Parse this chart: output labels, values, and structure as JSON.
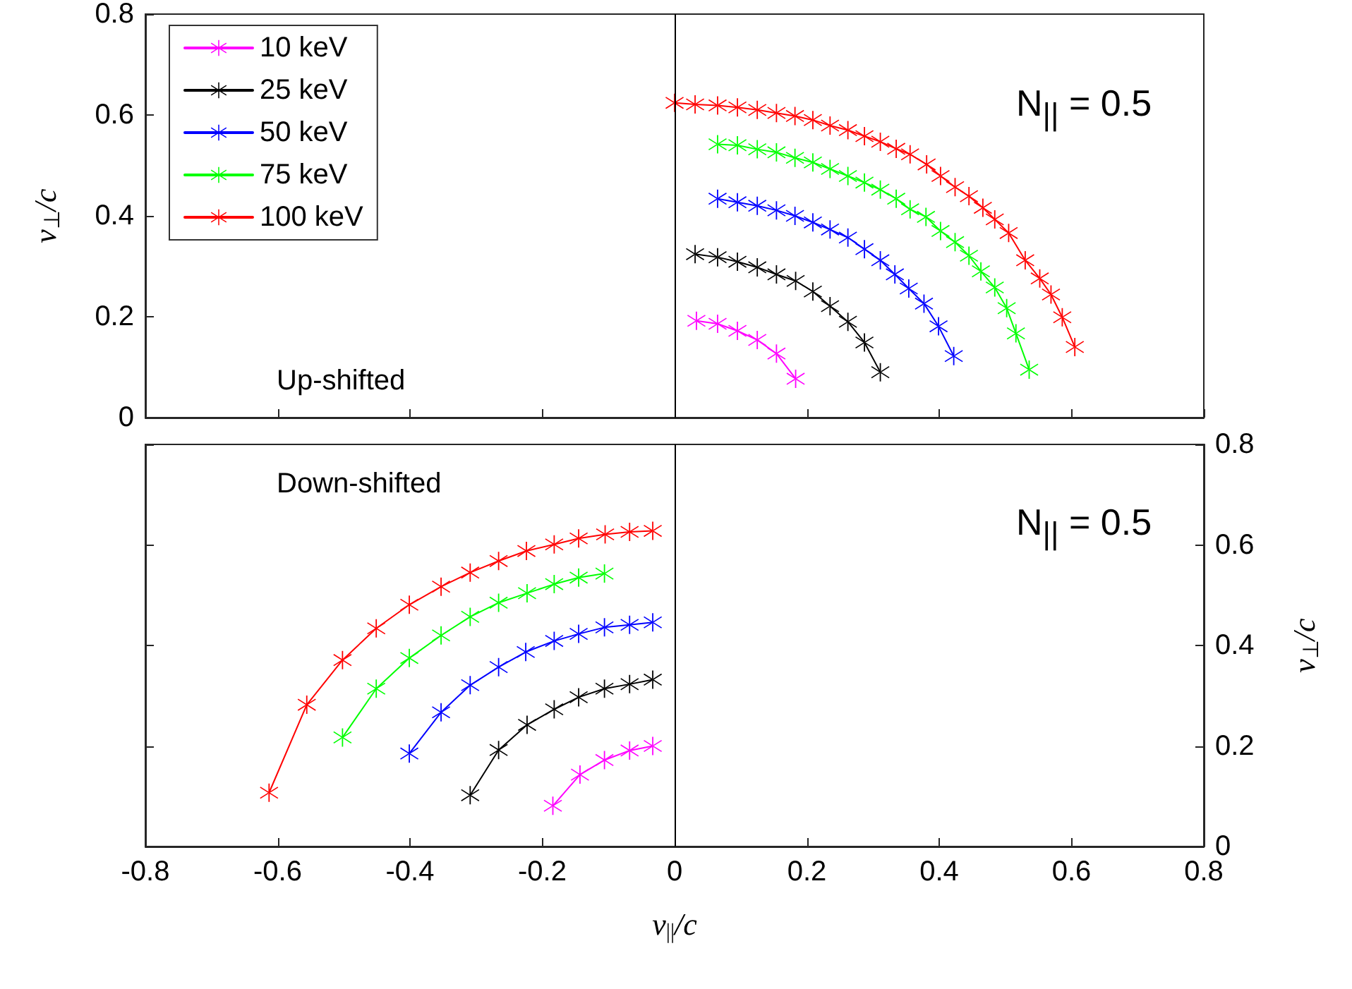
{
  "chart_data": [
    {
      "type": "line",
      "ylabel": "v$_{⊥}$/c",
      "annotations": [
        "N$_{||}$ = 0.5",
        "Up-shifted"
      ],
      "xlim": [
        -0.8,
        0.8
      ],
      "xticks": [
        -0.8,
        -0.6,
        -0.4,
        -0.2,
        0,
        0.2,
        0.4,
        0.6,
        0.8
      ],
      "ylim": [
        0,
        0.8
      ],
      "yticks": [
        0,
        0.2,
        0.4,
        0.6,
        0.8
      ],
      "tick_labels": "y",
      "grid": false,
      "legend": "top left",
      "marker": "cross",
      "line_style": "solid",
      "ref_lines": [
        {
          "axis": "x",
          "value": 0,
          "color": "#000000"
        }
      ],
      "series": [
        {
          "name": "10 keV",
          "color": "#ff00ff",
          "x": [
            0.033,
            0.065,
            0.095,
            0.125,
            0.154,
            0.183
          ],
          "values": [
            0.192,
            0.186,
            0.172,
            0.154,
            0.127,
            0.077
          ]
        },
        {
          "name": "25 keV",
          "color": "#000000",
          "x": [
            0.031,
            0.065,
            0.095,
            0.125,
            0.154,
            0.183,
            0.209,
            0.235,
            0.262,
            0.287,
            0.311
          ],
          "values": [
            0.324,
            0.318,
            0.309,
            0.298,
            0.284,
            0.271,
            0.25,
            0.221,
            0.19,
            0.149,
            0.09
          ]
        },
        {
          "name": "50 keV",
          "color": "#0000ff",
          "x": [
            0.065,
            0.095,
            0.125,
            0.154,
            0.182,
            0.209,
            0.235,
            0.262,
            0.287,
            0.311,
            0.333,
            0.354,
            0.377,
            0.399,
            0.422
          ],
          "values": [
            0.434,
            0.427,
            0.42,
            0.411,
            0.4,
            0.387,
            0.373,
            0.357,
            0.334,
            0.312,
            0.284,
            0.256,
            0.226,
            0.181,
            0.122
          ]
        },
        {
          "name": "75 keV",
          "color": "#00ff00",
          "x": [
            0.065,
            0.095,
            0.125,
            0.154,
            0.182,
            0.209,
            0.235,
            0.262,
            0.287,
            0.311,
            0.335,
            0.356,
            0.38,
            0.402,
            0.424,
            0.445,
            0.463,
            0.484,
            0.502,
            0.516,
            0.536
          ],
          "values": [
            0.542,
            0.54,
            0.532,
            0.526,
            0.515,
            0.506,
            0.493,
            0.479,
            0.466,
            0.452,
            0.434,
            0.413,
            0.398,
            0.37,
            0.348,
            0.321,
            0.29,
            0.258,
            0.217,
            0.167,
            0.095
          ]
        },
        {
          "name": "100 keV",
          "color": "#ff0000",
          "x": [
            0.0,
            0.031,
            0.065,
            0.095,
            0.125,
            0.154,
            0.182,
            0.209,
            0.235,
            0.262,
            0.287,
            0.311,
            0.335,
            0.356,
            0.381,
            0.402,
            0.424,
            0.445,
            0.466,
            0.484,
            0.505,
            0.53,
            0.552,
            0.569,
            0.586,
            0.605
          ],
          "values": [
            0.624,
            0.621,
            0.619,
            0.615,
            0.61,
            0.604,
            0.598,
            0.59,
            0.579,
            0.57,
            0.558,
            0.547,
            0.533,
            0.522,
            0.502,
            0.479,
            0.457,
            0.439,
            0.416,
            0.393,
            0.366,
            0.312,
            0.276,
            0.244,
            0.199,
            0.14
          ]
        }
      ]
    },
    {
      "type": "line",
      "xlabel": "v$_{||}$/c",
      "y2label": "v$_{⊥}$/c",
      "annotations": [
        "Down-shifted",
        "N$_{||}$ = 0.5"
      ],
      "xlim": [
        -0.8,
        0.8
      ],
      "xticks": [
        -0.8,
        -0.6,
        -0.4,
        -0.2,
        0,
        0.2,
        0.4,
        0.6,
        0.8
      ],
      "y2lim": [
        0,
        0.8
      ],
      "y2ticks": [
        0,
        0.2,
        0.4,
        0.6,
        0.8
      ],
      "grid": false,
      "legend": false,
      "marker": "cross",
      "line_style": "solid",
      "ref_lines": [
        {
          "axis": "x",
          "value": 0,
          "color": "#000000"
        }
      ],
      "series": [
        {
          "color": "#ff00ff",
          "axis": "y2",
          "x": [
            -0.184,
            -0.143,
            -0.106,
            -0.068,
            -0.033
          ],
          "values": [
            0.081,
            0.143,
            0.172,
            0.191,
            0.2
          ]
        },
        {
          "color": "#000000",
          "axis": "y2",
          "x": [
            -0.309,
            -0.266,
            -0.223,
            -0.182,
            -0.145,
            -0.106,
            -0.068,
            -0.033
          ],
          "values": [
            0.102,
            0.192,
            0.242,
            0.273,
            0.297,
            0.314,
            0.323,
            0.332
          ]
        },
        {
          "color": "#0000ff",
          "axis": "y2",
          "x": [
            -0.401,
            -0.353,
            -0.309,
            -0.266,
            -0.225,
            -0.182,
            -0.145,
            -0.106,
            -0.068,
            -0.033
          ],
          "values": [
            0.185,
            0.267,
            0.321,
            0.357,
            0.387,
            0.409,
            0.423,
            0.436,
            0.441,
            0.446
          ]
        },
        {
          "color": "#00ff00",
          "axis": "y2",
          "x": [
            -0.502,
            -0.451,
            -0.401,
            -0.353,
            -0.309,
            -0.266,
            -0.223,
            -0.182,
            -0.145,
            -0.106
          ],
          "values": [
            0.217,
            0.314,
            0.375,
            0.42,
            0.457,
            0.485,
            0.504,
            0.522,
            0.535,
            0.543
          ]
        },
        {
          "color": "#ff0000",
          "axis": "y2",
          "x": [
            -0.613,
            -0.556,
            -0.502,
            -0.451,
            -0.401,
            -0.353,
            -0.309,
            -0.266,
            -0.224,
            -0.182,
            -0.145,
            -0.105,
            -0.068,
            -0.033
          ],
          "values": [
            0.107,
            0.282,
            0.371,
            0.434,
            0.481,
            0.517,
            0.545,
            0.568,
            0.588,
            0.601,
            0.613,
            0.621,
            0.626,
            0.628
          ]
        }
      ]
    }
  ]
}
